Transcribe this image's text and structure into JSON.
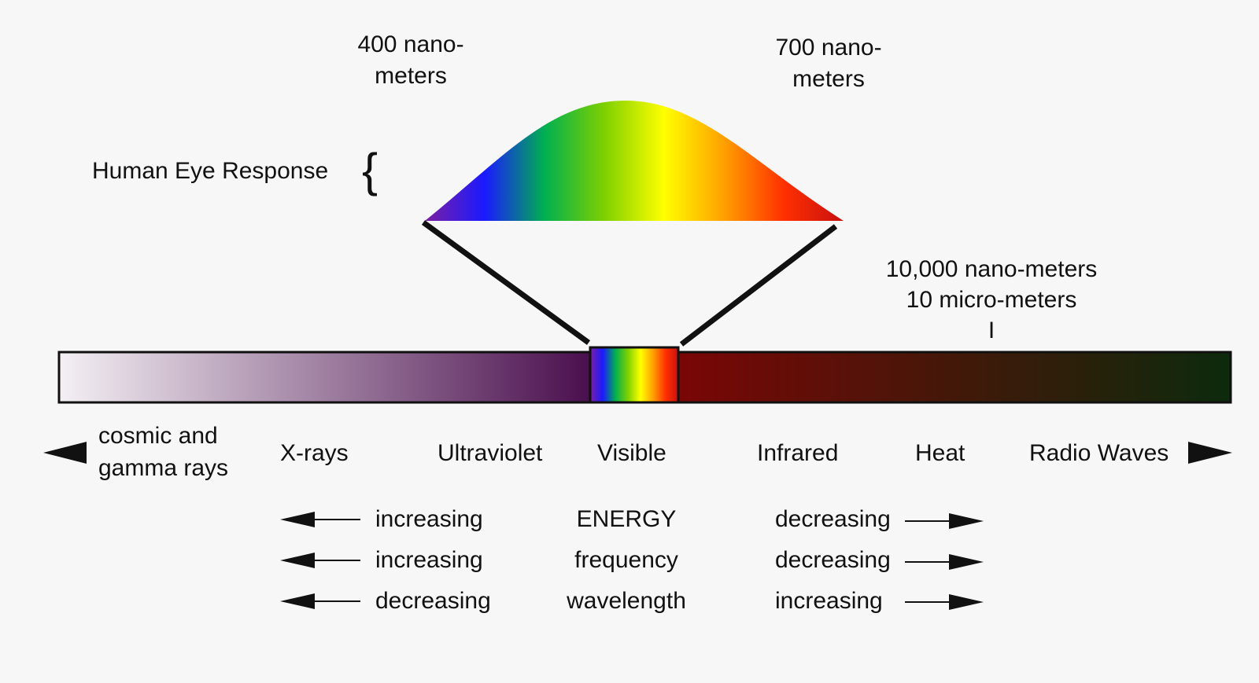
{
  "labels": {
    "nm400_line1": "400 nano-",
    "nm400_line2": "meters",
    "nm700_line1": "700 nano-",
    "nm700_line2": "meters",
    "eye_response": "Human Eye Response",
    "eye_brace": "{",
    "nm10000": "10,000 nano-meters",
    "um10": "10 micro-meters",
    "tick_mark": "I"
  },
  "regions": {
    "cosmic_line1": "cosmic and",
    "cosmic_line2": "gamma rays",
    "xrays": "X-rays",
    "ultraviolet": "Ultraviolet",
    "visible": "Visible",
    "infrared": "Infrared",
    "heat": "Heat",
    "radio": "Radio Waves"
  },
  "trends": [
    {
      "left": "increasing",
      "center": "ENERGY",
      "right": "decreasing"
    },
    {
      "left": "increasing",
      "center": "frequency",
      "right": "decreasing"
    },
    {
      "left": "decreasing",
      "center": "wavelength",
      "right": "increasing"
    }
  ],
  "colors": {
    "background": "#f7f7f7",
    "ink": "#111111",
    "uv_start": "#f4f0f4",
    "uv_end": "#4a0f4e",
    "ir_start": "#7a0606",
    "ir_end": "#0c2a0c",
    "spectrum": [
      "#7b1fa2",
      "#1a1aff",
      "#00b050",
      "#7fd000",
      "#ffff00",
      "#ffa000",
      "#ff3000",
      "#c81010"
    ]
  }
}
